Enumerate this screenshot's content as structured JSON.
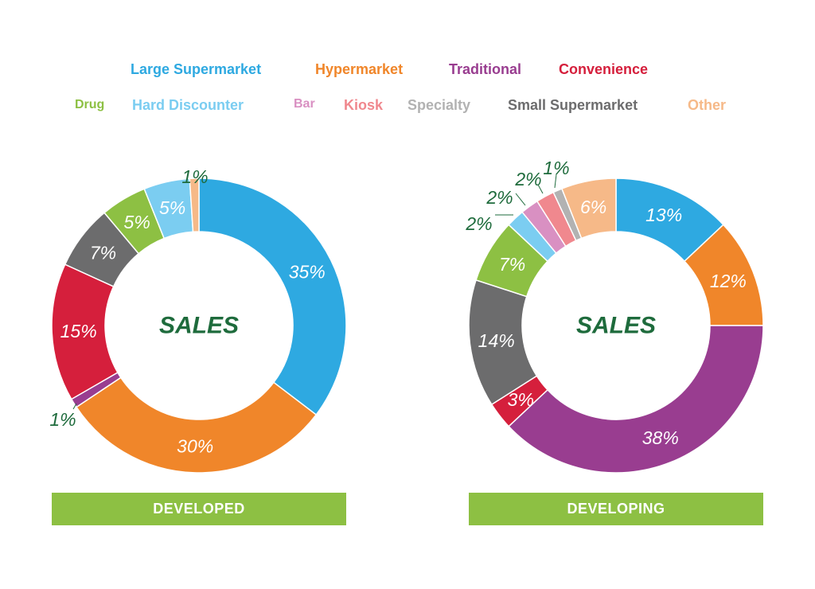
{
  "colors": {
    "Large Supermarket": "#2ea9e1",
    "Hypermarket": "#f0862a",
    "Traditional": "#993d90",
    "Convenience": "#d51f3c",
    "Drug": "#8dc043",
    "Hard Discounter": "#7bcdf1",
    "Bar": "#d990c2",
    "Kiosk": "#f0888e",
    "Specialty": "#b2b2b2",
    "Small Supermarket": "#6c6c6d",
    "Other": "#f6b988"
  },
  "label_color": "#1e6b3c",
  "legend": [
    {
      "name": "Large Supermarket",
      "color": "#2ea9e1"
    },
    {
      "name": "Hypermarket",
      "color": "#f0862a"
    },
    {
      "name": "Traditional",
      "color": "#993d90"
    },
    {
      "name": "Convenience",
      "color": "#d51f3c"
    },
    {
      "name": "Drug",
      "color": "#8dc043"
    },
    {
      "name": "Hard Discounter",
      "color": "#7bcdf1"
    },
    {
      "name": "Bar",
      "color": "#d990c2"
    },
    {
      "name": "Kiosk",
      "color": "#f0888e"
    },
    {
      "name": "Specialty",
      "color": "#b2b2b2"
    },
    {
      "name": "Small Supermarket",
      "color": "#6c6c6d"
    },
    {
      "name": "Other",
      "color": "#f6b988"
    }
  ],
  "chart_data": [
    {
      "type": "pie",
      "style": "donut",
      "center_label": "SALES",
      "panel_label": "DEVELOPED",
      "slices": [
        {
          "name": "Large Supermarket",
          "value": 35,
          "label": "35%"
        },
        {
          "name": "Hypermarket",
          "value": 30,
          "label": "30%"
        },
        {
          "name": "Traditional",
          "value": 1,
          "label": "1%"
        },
        {
          "name": "Convenience",
          "value": 15,
          "label": "15%"
        },
        {
          "name": "Small Supermarket",
          "value": 7,
          "label": "7%"
        },
        {
          "name": "Drug",
          "value": 5,
          "label": "5%"
        },
        {
          "name": "Hard Discounter",
          "value": 5,
          "label": "5%"
        },
        {
          "name": "Other",
          "value": 1,
          "label": "1%"
        }
      ]
    },
    {
      "type": "pie",
      "style": "donut",
      "center_label": "SALES",
      "panel_label": "DEVELOPING",
      "slices": [
        {
          "name": "Large Supermarket",
          "value": 13,
          "label": "13%"
        },
        {
          "name": "Hypermarket",
          "value": 12,
          "label": "12%"
        },
        {
          "name": "Traditional",
          "value": 38,
          "label": "38%"
        },
        {
          "name": "Convenience",
          "value": 3,
          "label": "3%"
        },
        {
          "name": "Small Supermarket",
          "value": 14,
          "label": "14%"
        },
        {
          "name": "Drug",
          "value": 7,
          "label": "7%"
        },
        {
          "name": "Hard Discounter",
          "value": 2,
          "label": "2%"
        },
        {
          "name": "Bar",
          "value": 2,
          "label": "2%"
        },
        {
          "name": "Kiosk",
          "value": 2,
          "label": "2%"
        },
        {
          "name": "Specialty",
          "value": 1,
          "label": "1%"
        },
        {
          "name": "Other",
          "value": 6,
          "label": "6%"
        }
      ]
    }
  ]
}
